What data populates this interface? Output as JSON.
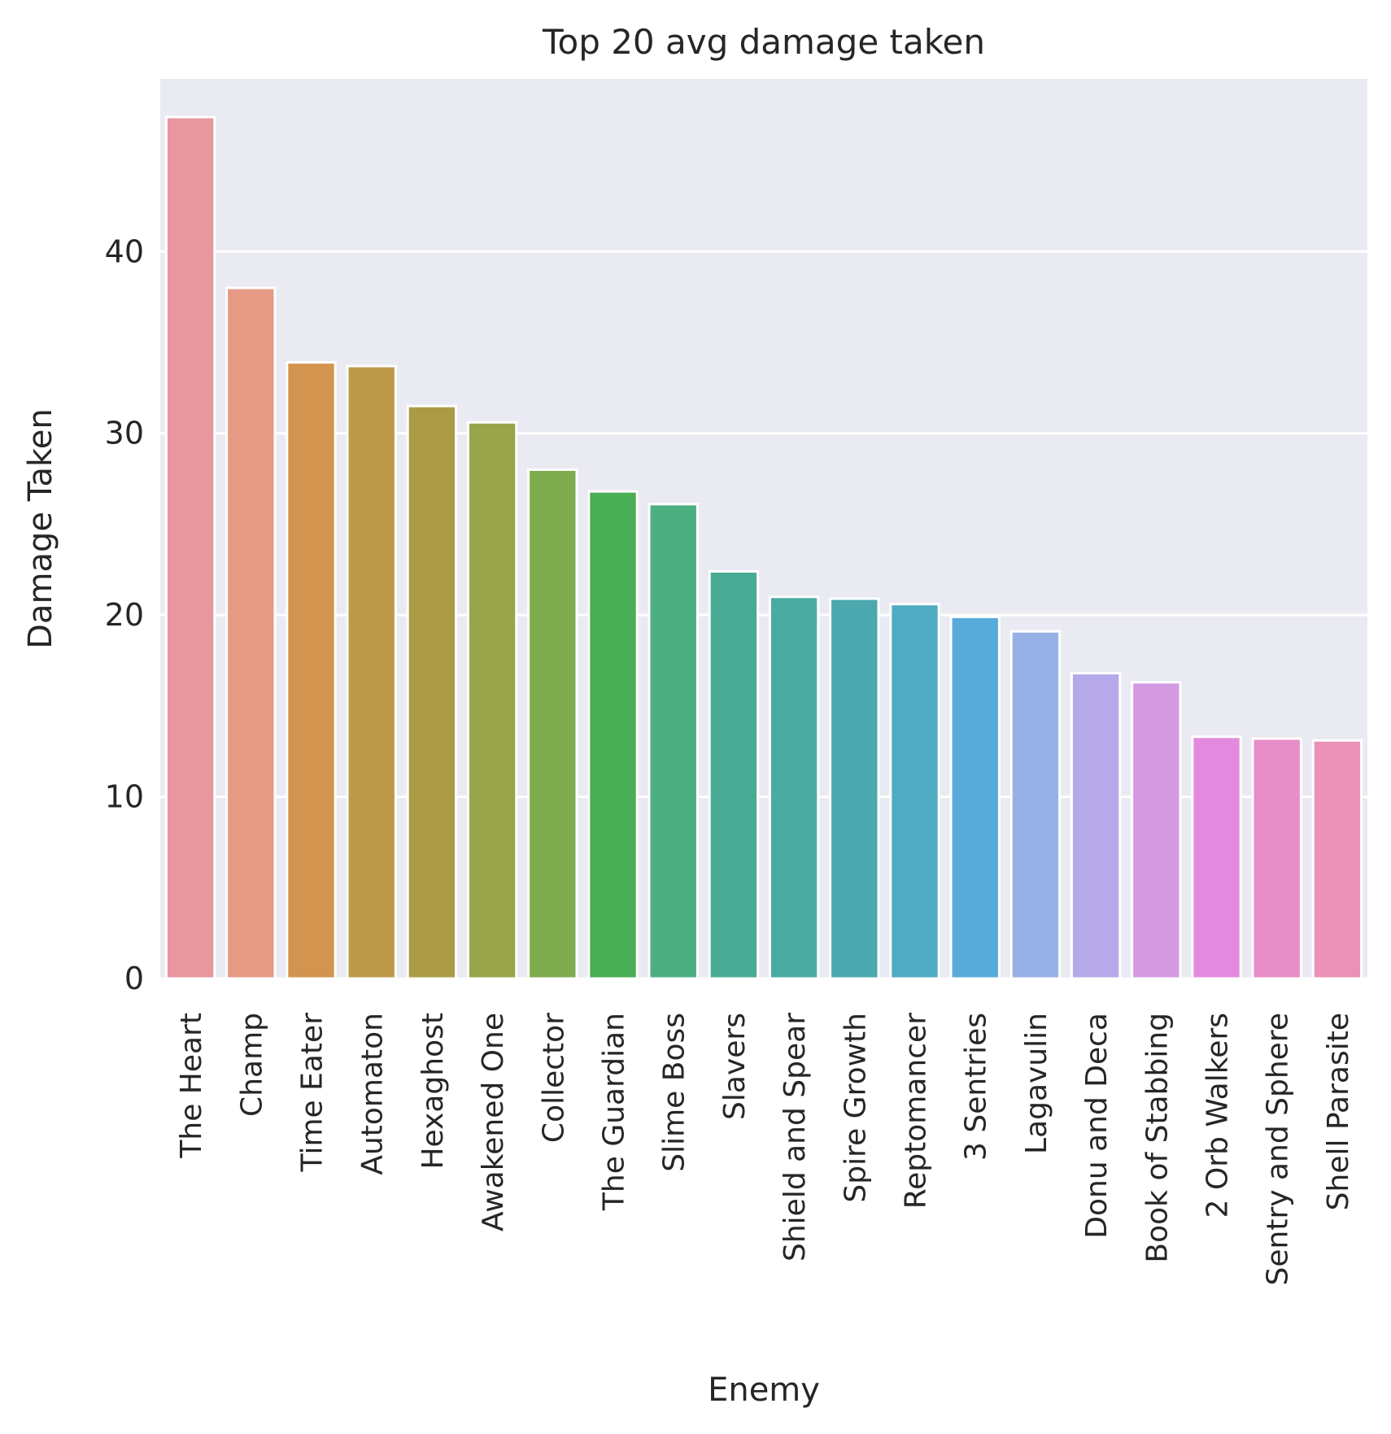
{
  "chart_data": {
    "type": "bar",
    "title": "Top 20 avg damage taken",
    "xlabel": "Enemy",
    "ylabel": "Damage Taken",
    "ylim": [
      0,
      49.5
    ],
    "yticks": [
      0,
      10,
      20,
      30,
      40
    ],
    "grid": true,
    "background": "#eaeaf2",
    "categories": [
      "The Heart",
      "Champ",
      "Time Eater",
      "Automaton",
      "Hexaghost",
      "Awakened One",
      "Collector",
      "The Guardian",
      "Slime Boss",
      "Slavers",
      "Shield and Spear",
      "Spire Growth",
      "Reptomancer",
      "3 Sentries",
      "Lagavulin",
      "Donu and Deca",
      "Book of Stabbing",
      "2 Orb Walkers",
      "Sentry and Sphere",
      "Shell Parasite"
    ],
    "values": [
      47.4,
      38.0,
      33.9,
      33.7,
      31.5,
      30.6,
      28.0,
      26.8,
      26.1,
      22.4,
      21.0,
      20.9,
      20.6,
      19.9,
      19.1,
      16.8,
      16.3,
      13.3,
      13.2,
      13.1
    ],
    "colors": [
      "#e8969f",
      "#e69a86",
      "#d3944f",
      "#bd9a4a",
      "#ab9b45",
      "#98a548",
      "#7dab4d",
      "#4aae54",
      "#4caf82",
      "#49ab94",
      "#4aaba3",
      "#4ba8ae",
      "#50acc2",
      "#58aadb",
      "#97b0e5",
      "#b6a9e9",
      "#d39ae2",
      "#e48ade",
      "#e78dc8",
      "#e991b7"
    ]
  }
}
